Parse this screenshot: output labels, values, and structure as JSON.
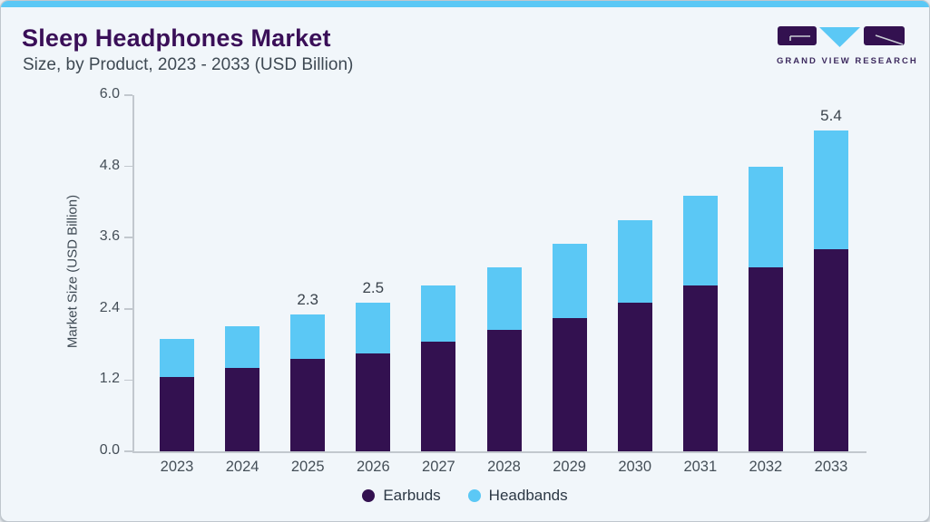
{
  "page": {
    "title": "Sleep Headphones Market",
    "subtitle": "Size, by Product, 2023 - 2033 (USD Billion)",
    "brand": {
      "name": "GRAND VIEW RESEARCH",
      "logo_icon": "gvr-logo",
      "logo_purple": "#331150",
      "logo_blue": "#5bc8f5"
    }
  },
  "colors": {
    "background": "#f1f6fa",
    "top_strip": "#5bc8f5",
    "title_purple": "#3a0f58",
    "axis_gray": "#c2c8ce",
    "earbuds": "#331150",
    "headbands": "#5bc8f5"
  },
  "chart_data": {
    "type": "bar",
    "stacked": true,
    "title": "Sleep Headphones Market Size, by Product, 2023 - 2033 (USD Billion)",
    "xlabel": "",
    "ylabel": "Market Size (USD Billion)",
    "ylim": [
      0,
      6
    ],
    "y_ticks": [
      "0.0",
      "1.2",
      "2.4",
      "3.6",
      "4.8",
      "6.0"
    ],
    "grid": false,
    "legend_position": "bottom",
    "categories": [
      "2023",
      "2024",
      "2025",
      "2026",
      "2027",
      "2028",
      "2029",
      "2030",
      "2031",
      "2032",
      "2033"
    ],
    "series": [
      {
        "name": "Earbuds",
        "color": "#331150",
        "values": [
          1.25,
          1.4,
          1.55,
          1.65,
          1.85,
          2.05,
          2.25,
          2.5,
          2.8,
          3.1,
          3.4
        ]
      },
      {
        "name": "Headbands",
        "color": "#5bc8f5",
        "values": [
          0.65,
          0.7,
          0.75,
          0.85,
          0.95,
          1.05,
          1.25,
          1.4,
          1.5,
          1.7,
          2.0
        ]
      }
    ],
    "totals": [
      1.9,
      2.1,
      2.3,
      2.5,
      2.8,
      3.1,
      3.5,
      3.9,
      4.3,
      4.8,
      5.4
    ],
    "bar_labels": {
      "2025": "2.3",
      "2026": "2.5",
      "2033": "5.4"
    }
  }
}
